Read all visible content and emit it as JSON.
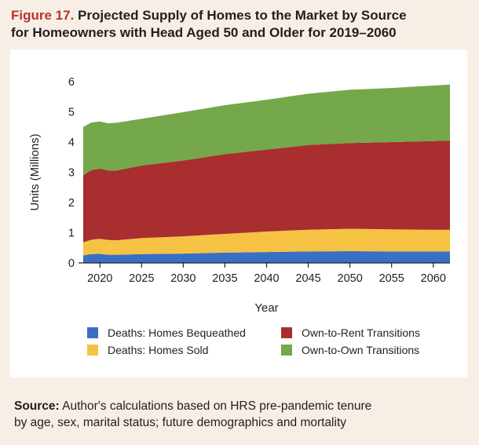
{
  "figure": {
    "label": "Figure 17.",
    "title_line1": "Projected Supply of Homes to the Market by Source",
    "title_line2": "for Homeowners with Head Aged 50 and Older for 2019–2060"
  },
  "source": {
    "label": "Source:",
    "text_line1": "Author's calculations based on HRS pre-pandemic tenure",
    "text_line2": "by age, sex, marital status; future demographics and mortality"
  },
  "colors": {
    "deaths_bequeathed": "#3a6fc4",
    "deaths_sold": "#f6c243",
    "own_to_rent": "#a82e2f",
    "own_to_own": "#74a84a"
  },
  "chart_data": {
    "type": "area",
    "stacked": true,
    "xlabel": "Year",
    "ylabel": "Units (Millions)",
    "xlim": [
      2018,
      2062
    ],
    "ylim": [
      0,
      6
    ],
    "xticks": [
      2020,
      2025,
      2030,
      2035,
      2040,
      2045,
      2050,
      2055,
      2060
    ],
    "yticks": [
      0,
      1,
      2,
      3,
      4,
      5,
      6
    ],
    "grid": false,
    "legend": "bottom",
    "x": [
      2018,
      2019,
      2020,
      2021,
      2022,
      2025,
      2030,
      2035,
      2040,
      2045,
      2050,
      2055,
      2060,
      2062
    ],
    "series": [
      {
        "name": "Deaths: Homes Bequeathed",
        "values": [
          0.25,
          0.29,
          0.3,
          0.27,
          0.27,
          0.29,
          0.31,
          0.34,
          0.36,
          0.38,
          0.39,
          0.38,
          0.38,
          0.38
        ]
      },
      {
        "name": "Deaths: Homes Sold",
        "values": [
          0.43,
          0.48,
          0.5,
          0.49,
          0.48,
          0.53,
          0.57,
          0.62,
          0.68,
          0.72,
          0.74,
          0.73,
          0.72,
          0.72
        ]
      },
      {
        "name": "Own-to-Rent Transitions",
        "values": [
          2.22,
          2.3,
          2.32,
          2.3,
          2.31,
          2.4,
          2.51,
          2.64,
          2.71,
          2.8,
          2.84,
          2.89,
          2.93,
          2.95
        ]
      },
      {
        "name": "Own-to-Own Transitions",
        "values": [
          1.6,
          1.58,
          1.56,
          1.56,
          1.58,
          1.55,
          1.6,
          1.62,
          1.65,
          1.7,
          1.76,
          1.79,
          1.84,
          1.85
        ]
      }
    ]
  }
}
